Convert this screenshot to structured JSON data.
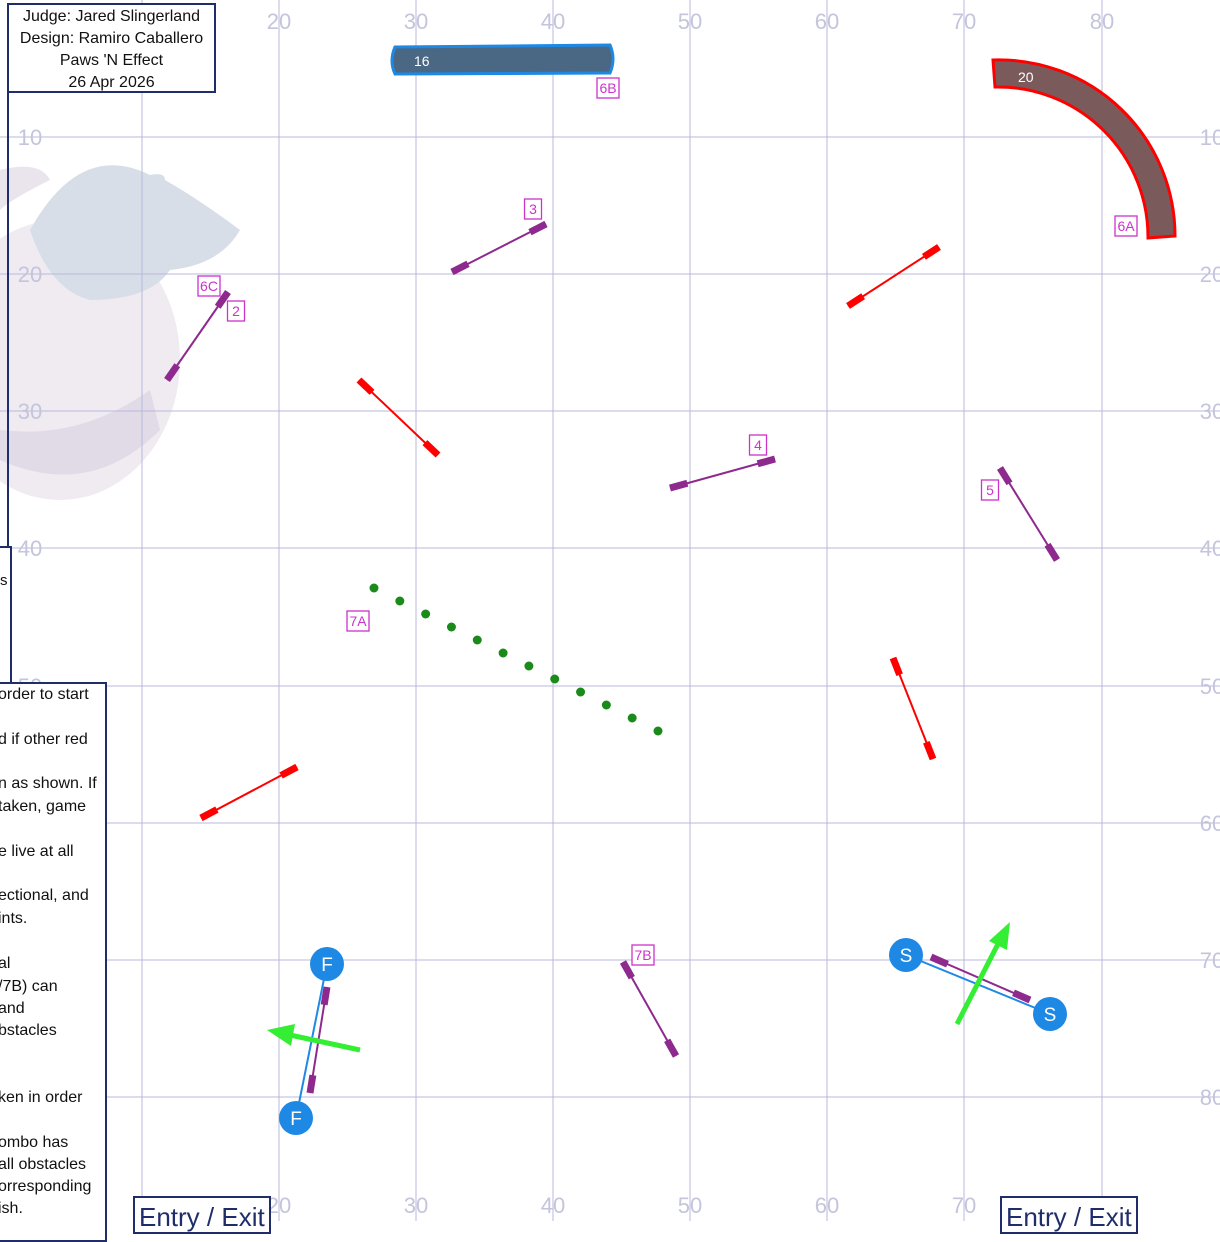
{
  "header": {
    "judge": "Judge: Jared Slingerland",
    "design": "Design: Ramiro Caballero",
    "club": "Paws 'N Effect",
    "date": "26 Apr 2026"
  },
  "axes": {
    "x_ticks": [
      "20",
      "30",
      "40",
      "50",
      "60",
      "70",
      "80"
    ],
    "y_ticks": [
      "10",
      "20",
      "30",
      "40",
      "50",
      "60",
      "70",
      "80"
    ],
    "bottom_x_ticks": [
      "20",
      "30",
      "40",
      "50",
      "60",
      "70"
    ]
  },
  "side_note_fragment": "s",
  "rules_fragments": [
    "order to start",
    "d if other red",
    "n as shown. If",
    " taken, game",
    "e live at all",
    "ectional, and",
    "ints.",
    "al",
    "/7B) can",
    "and",
    "bstacles",
    "ken in order",
    "ombo has",
    "all obstacles",
    "orresponding",
    "ish."
  ],
  "entry_label": "Entry / Exit",
  "obstacles": {
    "tunnel_straight": {
      "number": "16",
      "color": "#4a6784",
      "border": "#1e88e5"
    },
    "tunnel_curved": {
      "number": "20",
      "color": "#7a5a5a",
      "border": "#ff0000"
    },
    "tags": [
      "6B",
      "6A",
      "3",
      "6C",
      "2",
      "4",
      "5",
      "7A",
      "7B"
    ],
    "start_label": "S",
    "finish_label": "F",
    "weave_pole_count": 12
  },
  "colors": {
    "grid": "#b8b8dc",
    "tag": "#cc33cc",
    "purple_jump": "#8e2a8e",
    "red_jump": "#ff0000",
    "weave": "#1a8a1a",
    "start_finish": "#1e88e5",
    "arrow": "#33ee33",
    "frame": "#1f2d6b"
  }
}
